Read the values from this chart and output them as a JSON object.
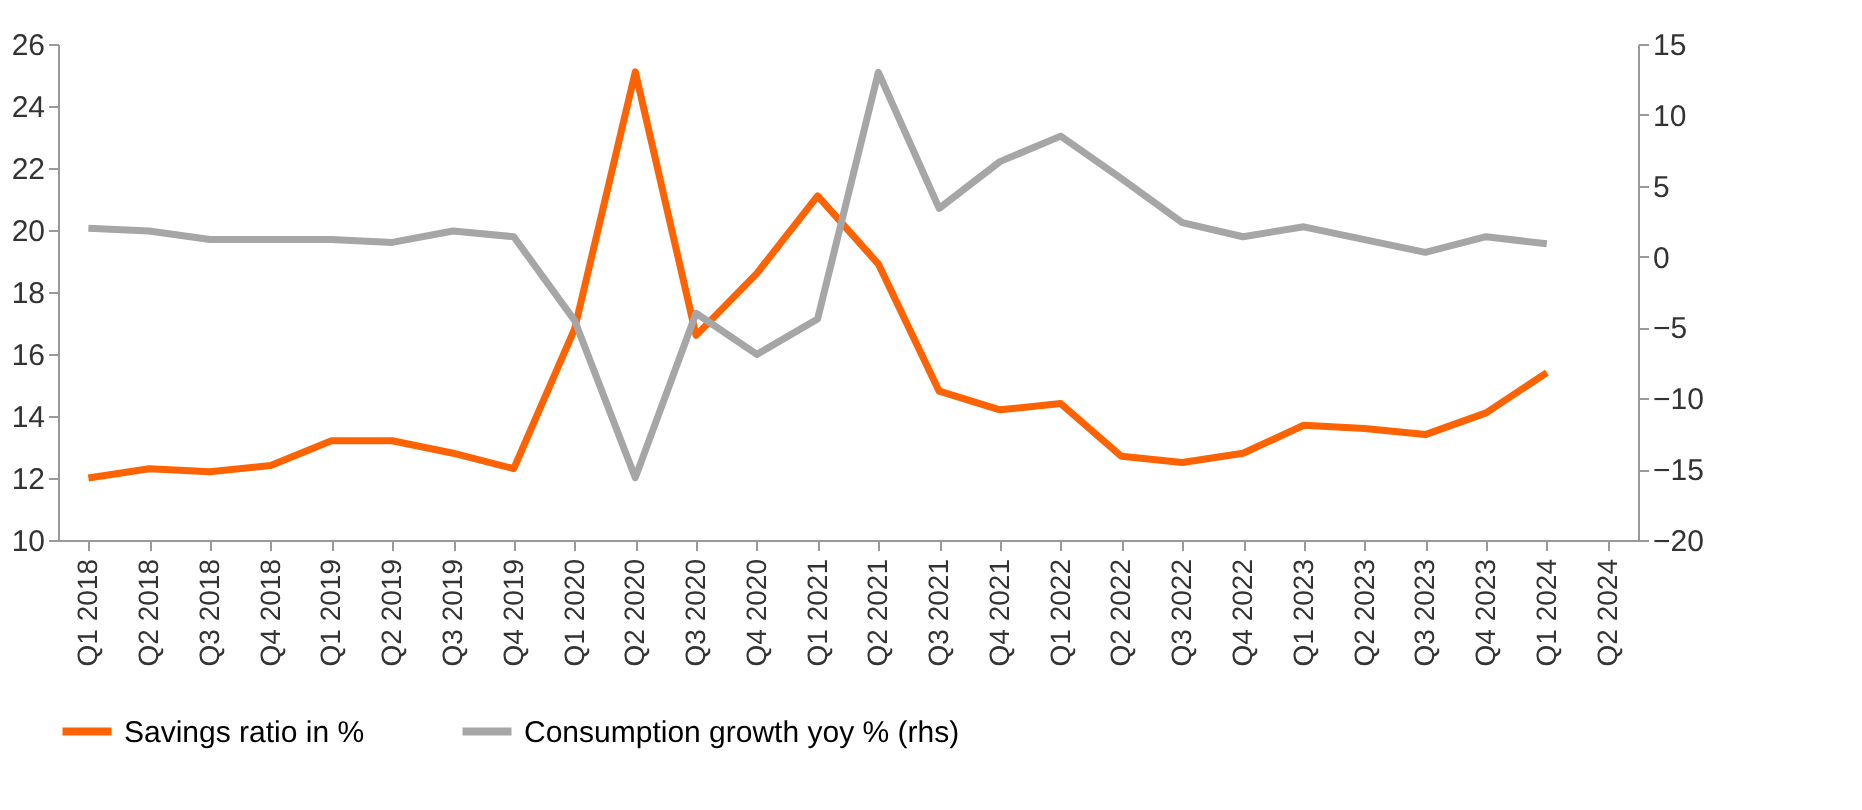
{
  "chart_data": {
    "type": "line",
    "categories": [
      "Q1 2018",
      "Q2 2018",
      "Q3 2018",
      "Q4 2018",
      "Q1 2019",
      "Q2 2019",
      "Q3 2019",
      "Q4 2019",
      "Q1 2020",
      "Q2 2020",
      "Q3 2020",
      "Q4 2020",
      "Q1 2021",
      "Q2 2021",
      "Q3 2021",
      "Q4 2021",
      "Q1 2022",
      "Q2 2022",
      "Q3 2022",
      "Q4 2022",
      "Q1 2023",
      "Q2 2023",
      "Q3 2023",
      "Q4 2023",
      "Q1 2024",
      "Q2 2024"
    ],
    "series": [
      {
        "name": "Savings ratio in %",
        "color": "#ff6200",
        "values": [
          12.0,
          12.3,
          12.2,
          12.4,
          13.2,
          13.2,
          12.8,
          12.3,
          16.8,
          25.1,
          16.6,
          18.6,
          21.1,
          18.9,
          14.8,
          14.2,
          14.4,
          12.7,
          12.5,
          12.8,
          13.7,
          13.6,
          13.4,
          14.1,
          15.4,
          null
        ]
      },
      {
        "name": "Consumption growth yoy % (rhs)",
        "color": "#a6a6a6",
        "axis": "y2",
        "values": [
          2.0,
          1.8,
          1.2,
          1.2,
          1.2,
          1.0,
          1.8,
          1.4,
          -4.5,
          -15.6,
          -4.0,
          -6.9,
          -4.4,
          13.0,
          3.4,
          6.7,
          8.5,
          5.5,
          2.4,
          1.4,
          2.1,
          1.2,
          0.3,
          1.4,
          0.9,
          null
        ]
      }
    ],
    "ylim": [
      10,
      26
    ],
    "yticks": [
      10,
      12,
      14,
      16,
      18,
      20,
      22,
      24,
      26
    ],
    "y2lim": [
      -20,
      15
    ],
    "y2ticks": [
      -20,
      -15,
      -10,
      -5,
      0,
      5,
      10,
      15
    ],
    "grid": false,
    "legend": "bottom",
    "line_style": "solid",
    "marker": "none"
  }
}
